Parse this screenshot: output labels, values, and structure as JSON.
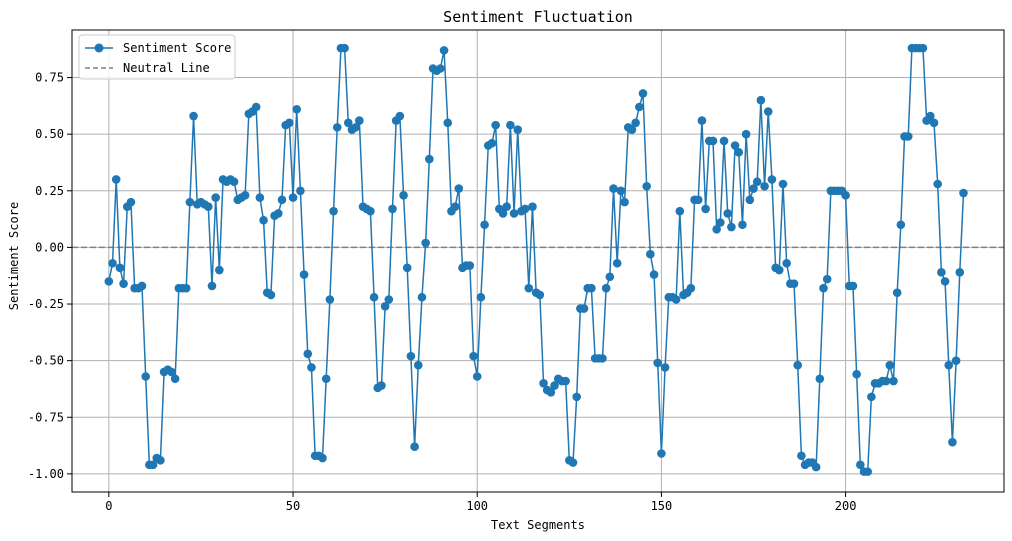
{
  "chart_data": {
    "type": "line",
    "title": "Sentiment Fluctuation",
    "xlabel": "Text Segments",
    "ylabel": "Sentiment Score",
    "xlim": [
      -10,
      243
    ],
    "ylim": [
      -1.08,
      0.96
    ],
    "xticks": [
      0,
      50,
      100,
      150,
      200
    ],
    "yticks": [
      -1.0,
      -0.75,
      -0.5,
      -0.25,
      0.0,
      0.25,
      0.5,
      0.75
    ],
    "ytick_labels": [
      "-1.00",
      "-0.75",
      "-0.50",
      "-0.25",
      "0.00",
      "0.25",
      "0.50",
      "0.75"
    ],
    "grid": true,
    "legend_position": "top-left",
    "colors": {
      "series": "#1f77b4",
      "neutral": "#808080"
    },
    "neutral_line": {
      "name": "Neutral Line",
      "y": 0
    },
    "series": [
      {
        "name": "Sentiment Score",
        "values": [
          -0.15,
          -0.07,
          0.3,
          -0.09,
          -0.16,
          0.18,
          0.2,
          -0.18,
          -0.18,
          -0.17,
          -0.57,
          -0.96,
          -0.96,
          -0.93,
          -0.94,
          -0.55,
          -0.54,
          -0.55,
          -0.58,
          -0.18,
          -0.18,
          -0.18,
          0.2,
          0.58,
          0.19,
          0.2,
          0.19,
          0.18,
          -0.17,
          0.22,
          -0.1,
          0.3,
          0.29,
          0.3,
          0.29,
          0.21,
          0.22,
          0.23,
          0.59,
          0.6,
          0.62,
          0.22,
          0.12,
          -0.2,
          -0.21,
          0.14,
          0.15,
          0.21,
          0.54,
          0.55,
          0.22,
          0.61,
          0.25,
          -0.12,
          -0.47,
          -0.53,
          -0.92,
          -0.92,
          -0.93,
          -0.58,
          -0.23,
          0.16,
          0.53,
          0.88,
          0.88,
          0.55,
          0.52,
          0.53,
          0.56,
          0.18,
          0.17,
          0.16,
          -0.22,
          -0.62,
          -0.61,
          -0.26,
          -0.23,
          0.17,
          0.56,
          0.58,
          0.23,
          -0.09,
          -0.48,
          -0.88,
          -0.52,
          -0.22,
          0.02,
          0.39,
          0.79,
          0.78,
          0.79,
          0.87,
          0.55,
          0.16,
          0.18,
          0.26,
          -0.09,
          -0.08,
          -0.08,
          -0.48,
          -0.57,
          -0.22,
          0.1,
          0.45,
          0.46,
          0.54,
          0.17,
          0.15,
          0.18,
          0.54,
          0.15,
          0.52,
          0.16,
          0.17,
          -0.18,
          0.18,
          -0.2,
          -0.21,
          -0.6,
          -0.63,
          -0.64,
          -0.61,
          -0.58,
          -0.59,
          -0.59,
          -0.94,
          -0.95,
          -0.66,
          -0.27,
          -0.27,
          -0.18,
          -0.18,
          -0.49,
          -0.49,
          -0.49,
          -0.18,
          -0.13,
          0.26,
          -0.07,
          0.25,
          0.2,
          0.53,
          0.52,
          0.55,
          0.62,
          0.68,
          0.27,
          -0.03,
          -0.12,
          -0.51,
          -0.91,
          -0.53,
          -0.22,
          -0.22,
          -0.23,
          0.16,
          -0.21,
          -0.2,
          -0.18,
          0.21,
          0.21,
          0.56,
          0.17,
          0.47,
          0.47,
          0.08,
          0.11,
          0.47,
          0.15,
          0.09,
          0.45,
          0.42,
          0.1,
          0.5,
          0.21,
          0.26,
          0.29,
          0.65,
          0.27,
          0.6,
          0.3,
          -0.09,
          -0.1,
          0.28,
          -0.07,
          -0.16,
          -0.16,
          -0.52,
          -0.92,
          -0.96,
          -0.95,
          -0.95,
          -0.97,
          -0.58,
          -0.18,
          -0.14,
          0.25,
          0.25,
          0.25,
          0.25,
          0.23,
          -0.17,
          -0.17,
          -0.56,
          -0.96,
          -0.99,
          -0.99,
          -0.66,
          -0.6,
          -0.6,
          -0.59,
          -0.59,
          -0.52,
          -0.59,
          -0.2,
          0.1,
          0.49,
          0.49,
          0.88,
          0.88,
          0.88,
          0.88,
          0.56,
          0.58,
          0.55,
          0.28,
          -0.11,
          -0.15,
          -0.52,
          -0.86,
          -0.5,
          -0.11,
          0.24
        ]
      }
    ]
  }
}
